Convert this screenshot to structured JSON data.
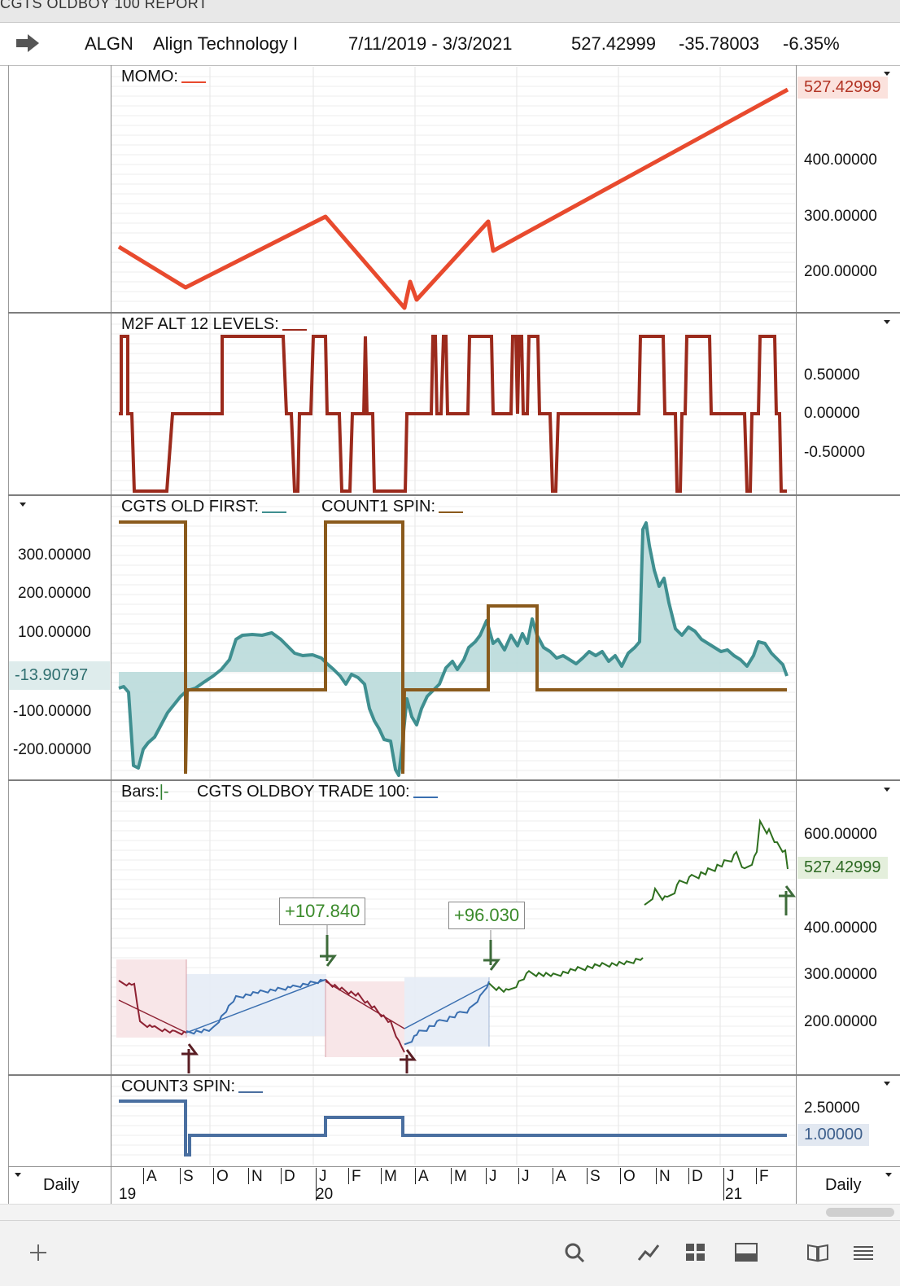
{
  "window": {
    "title": "CGTS OLDBOY 100  REPORT"
  },
  "toolbar": {
    "symbol": "ALGN",
    "name": "Align Technology I",
    "date_range": "7/11/2019 - 3/3/2021",
    "last": "527.42999",
    "change": "-35.78003",
    "change_pct": "-6.35%"
  },
  "panes": {
    "momo": {
      "label": "MOMO:",
      "color": "#e84a2e",
      "ticks": [
        "400.00000",
        "300.00000",
        "200.00000"
      ],
      "current": "527.42999"
    },
    "m2f": {
      "label": "M2F ALT 12 LEVELS:",
      "color": "#9b2a1c",
      "ticks": [
        "0.50000",
        "0.00000",
        "-0.50000"
      ]
    },
    "cgts": {
      "label1": "CGTS OLD FIRST:",
      "color1": "#3f8f90",
      "label2": "COUNT1 SPIN:",
      "color2": "#8a5a1c",
      "ticks": [
        "300.00000",
        "200.00000",
        "100.00000",
        "-100.00000",
        "-200.00000"
      ],
      "current": "-13.90797"
    },
    "price": {
      "label_bars": "Bars:",
      "bars_glyph": "|-",
      "label2": "CGTS OLDBOY TRADE 100:",
      "color2": "#3a6fb0",
      "ticks": [
        "600.00000",
        "400.00000",
        "300.00000",
        "200.00000"
      ],
      "current": "527.42999",
      "trades": [
        {
          "gain": "+107.840"
        },
        {
          "gain": "+96.030"
        }
      ]
    },
    "count3": {
      "label": "COUNT3 SPIN:",
      "color": "#4a6fa0",
      "ticks": [
        "2.50000",
        "1.00000"
      ]
    }
  },
  "xaxis": {
    "months": [
      "A",
      "S",
      "O",
      "N",
      "D",
      "J",
      "F",
      "M",
      "A",
      "M",
      "J",
      "J",
      "A",
      "S",
      "O",
      "N",
      "D",
      "J",
      "F"
    ],
    "years": [
      "19",
      "20",
      "21"
    ],
    "period_left": "Daily",
    "period_right": "Daily"
  },
  "bottom_bar": {
    "icons": [
      "add-icon",
      "search-icon",
      "line-chart-icon",
      "grid-icon",
      "panel-icon",
      "book-icon",
      "list-icon"
    ]
  }
}
